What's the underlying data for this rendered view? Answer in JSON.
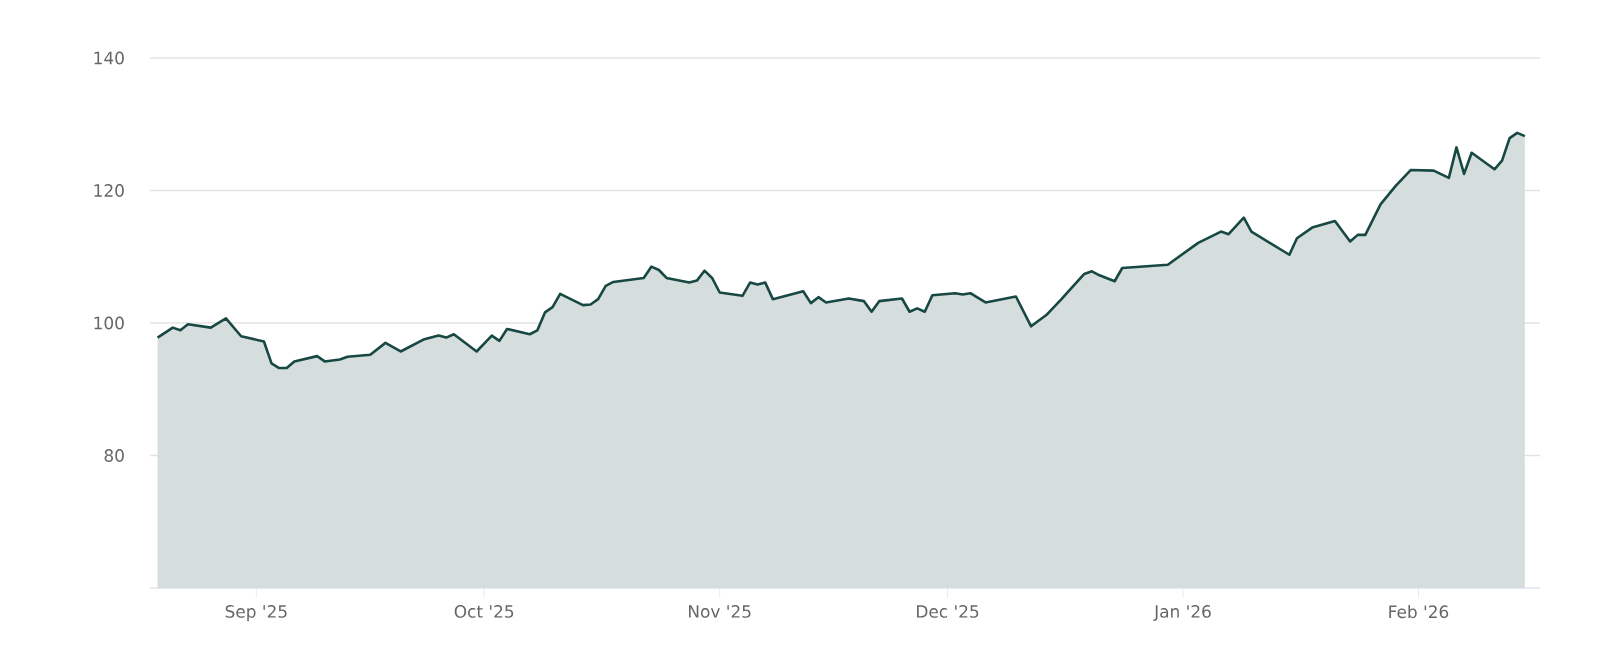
{
  "chart_data": {
    "type": "area",
    "x": [
      "2025-08-19",
      "2025-08-21",
      "2025-08-22",
      "2025-08-23",
      "2025-08-26",
      "2025-08-28",
      "2025-08-30",
      "2025-09-02",
      "2025-09-03",
      "2025-09-04",
      "2025-09-05",
      "2025-09-06",
      "2025-09-09",
      "2025-09-10",
      "2025-09-12",
      "2025-09-13",
      "2025-09-16",
      "2025-09-18",
      "2025-09-20",
      "2025-09-23",
      "2025-09-25",
      "2025-09-26",
      "2025-09-27",
      "2025-09-30",
      "2025-10-02",
      "2025-10-03",
      "2025-10-04",
      "2025-10-07",
      "2025-10-08",
      "2025-10-09",
      "2025-10-10",
      "2025-10-11",
      "2025-10-14",
      "2025-10-15",
      "2025-10-16",
      "2025-10-17",
      "2025-10-18",
      "2025-10-22",
      "2025-10-23",
      "2025-10-24",
      "2025-10-25",
      "2025-10-28",
      "2025-10-29",
      "2025-10-30",
      "2025-10-31",
      "2025-11-01",
      "2025-11-04",
      "2025-11-05",
      "2025-11-06",
      "2025-11-07",
      "2025-11-08",
      "2025-11-12",
      "2025-11-13",
      "2025-11-14",
      "2025-11-15",
      "2025-11-18",
      "2025-11-20",
      "2025-11-21",
      "2025-11-22",
      "2025-11-25",
      "2025-11-26",
      "2025-11-27",
      "2025-11-28",
      "2025-11-29",
      "2025-12-02",
      "2025-12-03",
      "2025-12-04",
      "2025-12-06",
      "2025-12-10",
      "2025-12-12",
      "2025-12-14",
      "2025-12-16",
      "2025-12-17",
      "2025-12-19",
      "2025-12-20",
      "2025-12-21",
      "2025-12-23",
      "2025-12-24",
      "2025-12-30",
      "2026-01-03",
      "2026-01-06",
      "2026-01-07",
      "2026-01-09",
      "2026-01-10",
      "2026-01-15",
      "2026-01-16",
      "2026-01-18",
      "2026-01-21",
      "2026-01-23",
      "2026-01-24",
      "2026-01-25",
      "2026-01-27",
      "2026-01-29",
      "2026-01-31",
      "2026-02-03",
      "2026-02-05",
      "2026-02-06",
      "2026-02-07",
      "2026-02-08",
      "2026-02-11",
      "2026-02-12",
      "2026-02-13",
      "2026-02-14",
      "2026-02-15"
    ],
    "series": [
      {
        "color": "#174843",
        "values": [
          97.8,
          99.3,
          98.9,
          99.8,
          99.3,
          100.7,
          98.0,
          97.2,
          93.9,
          93.2,
          93.2,
          94.2,
          95.0,
          94.2,
          94.5,
          94.9,
          95.2,
          97.0,
          95.7,
          97.5,
          98.1,
          97.8,
          98.3,
          95.7,
          98.1,
          97.3,
          99.1,
          98.3,
          98.9,
          101.6,
          102.4,
          104.4,
          102.7,
          102.8,
          103.6,
          105.6,
          106.2,
          106.8,
          108.5,
          108.0,
          106.8,
          106.1,
          106.4,
          107.9,
          106.8,
          104.6,
          104.1,
          106.1,
          105.8,
          106.1,
          103.6,
          104.8,
          103.0,
          103.9,
          103.1,
          103.7,
          103.3,
          101.7,
          103.3,
          103.7,
          101.7,
          102.2,
          101.7,
          104.2,
          104.5,
          104.3,
          104.5,
          103.1,
          104.0,
          99.5,
          101.2,
          103.6,
          104.9,
          107.4,
          107.8,
          107.2,
          106.3,
          108.3,
          108.8,
          112.1,
          113.8,
          113.4,
          115.9,
          113.8,
          110.3,
          112.8,
          114.4,
          115.4,
          112.3,
          113.3,
          113.3,
          117.9,
          120.7,
          123.1,
          123.0,
          121.9,
          126.5,
          122.5,
          125.7,
          123.2,
          124.5,
          127.9,
          128.7,
          128.2
        ]
      }
    ],
    "xlim": [
      "2025-08-18",
      "2026-02-17"
    ],
    "xticks": [
      {
        "value": "2025-09-01",
        "label": "Sep '25"
      },
      {
        "value": "2025-10-01",
        "label": "Oct '25"
      },
      {
        "value": "2025-11-01",
        "label": "Nov '25"
      },
      {
        "value": "2025-12-01",
        "label": "Dec '25"
      },
      {
        "value": "2026-01-01",
        "label": "Jan '26"
      },
      {
        "value": "2026-02-01",
        "label": "Feb '26"
      }
    ],
    "ylim": [
      60,
      140
    ],
    "yticks": [
      80,
      100,
      120,
      140
    ],
    "grid": "y"
  }
}
